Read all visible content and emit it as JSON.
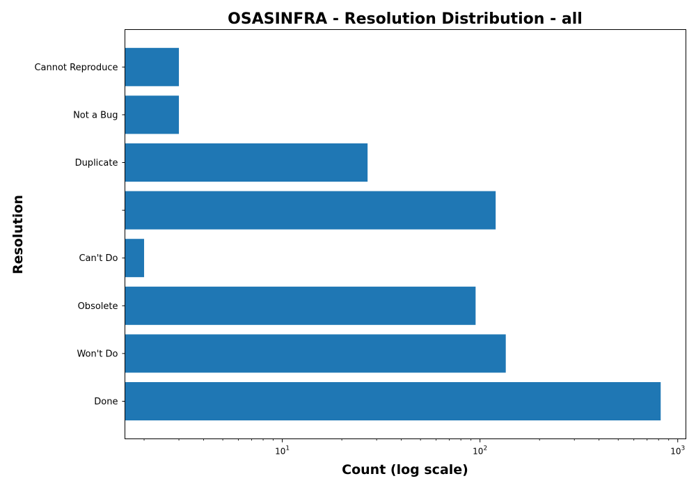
{
  "chart_data": {
    "type": "bar",
    "orientation": "horizontal",
    "title": "OSASINFRA - Resolution Distribution - all",
    "xlabel": "Count (log scale)",
    "ylabel": "Resolution",
    "xscale": "log",
    "xlim": [
      1.6,
      1100
    ],
    "x_ticks": [
      {
        "value": 10,
        "label": "10¹",
        "base": "10",
        "exp": "1"
      },
      {
        "value": 100,
        "label": "10²",
        "base": "10",
        "exp": "2"
      },
      {
        "value": 1000,
        "label": "10³",
        "base": "10",
        "exp": "3"
      }
    ],
    "categories": [
      "Done",
      "Won't Do",
      "Obsolete",
      "Can't Do",
      "",
      "Duplicate",
      "Not a Bug",
      "Cannot Reproduce"
    ],
    "values": [
      820,
      135,
      95,
      2,
      120,
      27,
      3,
      3
    ],
    "bar_color": "#1f77b4",
    "grid": false,
    "legend": "none"
  }
}
